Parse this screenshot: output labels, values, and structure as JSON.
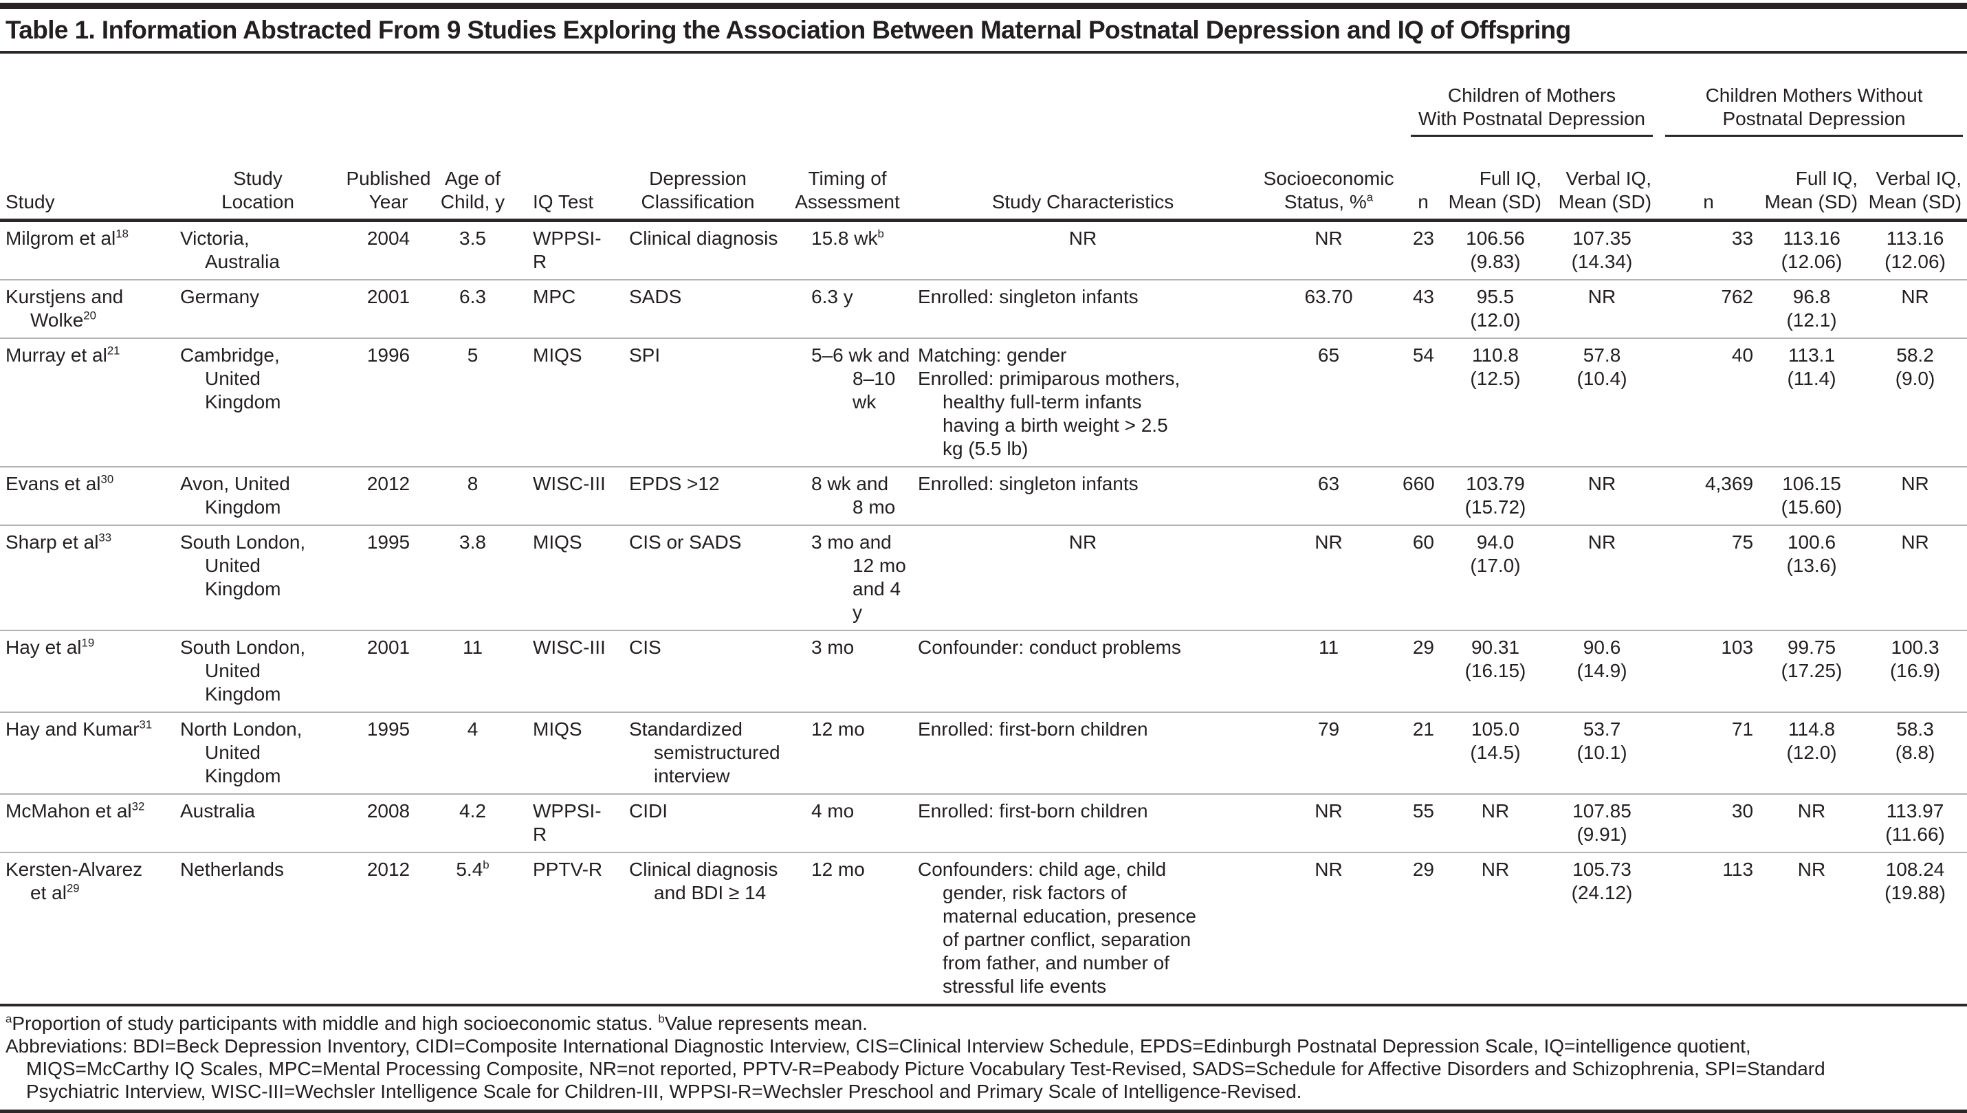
{
  "title": "Table 1. Information Abstracted From 9 Studies Exploring the Association Between Maternal Postnatal Depression and IQ of Offspring",
  "header": {
    "columns": [
      "Study",
      "Study\nLocation",
      "Published\nYear",
      "Age of\nChild, y",
      "IQ Test",
      "Depression\nClassification",
      "Timing of\nAssessment",
      "Study Characteristics",
      "Socioeconomic\nStatus, %^a"
    ],
    "groups": [
      {
        "label": "Children of Mothers\nWith Postnatal Depression",
        "subcolumns": [
          "n",
          "Full IQ,\nMean (SD)",
          "Verbal IQ,\nMean (SD)"
        ]
      },
      {
        "label": "Children Mothers Without\nPostnatal Depression",
        "subcolumns": [
          "n",
          "Full IQ,\nMean (SD)",
          "Verbal IQ,\nMean (SD)"
        ]
      }
    ]
  },
  "rows": [
    {
      "study": "Milgrom et al^18",
      "location": "Victoria,\nAustralia",
      "year": "2004",
      "age": "3.5",
      "iq_test": "WPPSI-R",
      "depression": "Clinical diagnosis",
      "timing": "15.8 wk^b",
      "characteristics": [
        "NR"
      ],
      "ses": "NR",
      "dep_n": "23",
      "dep_full": "106.56\n(9.83)",
      "dep_verbal": "107.35\n(14.34)",
      "ctrl_n": "33",
      "ctrl_full": "113.16\n(12.06)",
      "ctrl_verbal": "113.16\n(12.06)"
    },
    {
      "study": "Kurstjens and\nWolke^20",
      "location": "Germany",
      "year": "2001",
      "age": "6.3",
      "iq_test": "MPC",
      "depression": "SADS",
      "timing": "6.3 y",
      "characteristics": [
        "Enrolled: singleton infants"
      ],
      "ses": "63.70",
      "dep_n": "43",
      "dep_full": "95.5\n(12.0)",
      "dep_verbal": "NR",
      "ctrl_n": "762",
      "ctrl_full": "96.8\n(12.1)",
      "ctrl_verbal": "NR"
    },
    {
      "study": "Murray et al^21",
      "location": "Cambridge,\nUnited\nKingdom",
      "year": "1996",
      "age": "5",
      "iq_test": "MIQS",
      "depression": "SPI",
      "timing": "5–6 wk and\n8–10 wk",
      "characteristics": [
        "Matching: gender",
        "Enrolled: primiparous mothers,\nhealthy full-term infants\nhaving a birth weight > 2.5\nkg (5.5 lb)"
      ],
      "ses": "65",
      "dep_n": "54",
      "dep_full": "110.8\n(12.5)",
      "dep_verbal": "57.8\n(10.4)",
      "ctrl_n": "40",
      "ctrl_full": "113.1\n(11.4)",
      "ctrl_verbal": "58.2\n(9.0)"
    },
    {
      "study": "Evans et al^30",
      "location": "Avon, United\nKingdom",
      "year": "2012",
      "age": "8",
      "iq_test": "WISC-III",
      "depression": "EPDS >12",
      "timing": "8 wk and\n8 mo",
      "characteristics": [
        "Enrolled: singleton infants"
      ],
      "ses": "63",
      "dep_n": "660",
      "dep_full": "103.79\n(15.72)",
      "dep_verbal": "NR",
      "ctrl_n": "4,369",
      "ctrl_full": "106.15\n(15.60)",
      "ctrl_verbal": "NR"
    },
    {
      "study": "Sharp et al^33",
      "location": "South London,\nUnited\nKingdom",
      "year": "1995",
      "age": "3.8",
      "iq_test": "MIQS",
      "depression": "CIS or SADS",
      "timing": "3 mo and\n12 mo\nand 4 y",
      "characteristics": [
        "NR"
      ],
      "ses": "NR",
      "dep_n": "60",
      "dep_full": "94.0\n(17.0)",
      "dep_verbal": "NR",
      "ctrl_n": "75",
      "ctrl_full": "100.6\n(13.6)",
      "ctrl_verbal": "NR"
    },
    {
      "study": "Hay et al^19",
      "location": "South London,\nUnited\nKingdom",
      "year": "2001",
      "age": "11",
      "iq_test": "WISC-III",
      "depression": "CIS",
      "timing": "3 mo",
      "characteristics": [
        "Confounder: conduct problems"
      ],
      "ses": "11",
      "dep_n": "29",
      "dep_full": "90.31\n(16.15)",
      "dep_verbal": "90.6\n(14.9)",
      "ctrl_n": "103",
      "ctrl_full": "99.75\n(17.25)",
      "ctrl_verbal": "100.3\n(16.9)"
    },
    {
      "study": "Hay and Kumar^31",
      "location": "North London,\nUnited\nKingdom",
      "year": "1995",
      "age": "4",
      "iq_test": "MIQS",
      "depression": "Standardized\nsemistructured\ninterview",
      "timing": "12 mo",
      "characteristics": [
        "Enrolled: first-born children"
      ],
      "ses": "79",
      "dep_n": "21",
      "dep_full": "105.0\n(14.5)",
      "dep_verbal": "53.7\n(10.1)",
      "ctrl_n": "71",
      "ctrl_full": "114.8\n(12.0)",
      "ctrl_verbal": "58.3\n(8.8)"
    },
    {
      "study": "McMahon et al^32",
      "location": "Australia",
      "year": "2008",
      "age": "4.2",
      "iq_test": "WPPSI-R",
      "depression": "CIDI",
      "timing": "4 mo",
      "characteristics": [
        "Enrolled: first-born children"
      ],
      "ses": "NR",
      "dep_n": "55",
      "dep_full": "NR",
      "dep_verbal": "107.85\n(9.91)",
      "ctrl_n": "30",
      "ctrl_full": "NR",
      "ctrl_verbal": "113.97\n(11.66)"
    },
    {
      "study": "Kersten-Alvarez\net al^29",
      "location": "Netherlands",
      "year": "2012",
      "age": "5.4^b",
      "iq_test": "PPTV-R",
      "depression": "Clinical diagnosis\nand BDI ≥ 14",
      "timing": "12 mo",
      "characteristics": [
        "Confounders: child age, child\ngender, risk factors of\nmaternal education, presence\nof partner conflict, separation\nfrom father, and number of\nstressful life events"
      ],
      "ses": "NR",
      "dep_n": "29",
      "dep_full": "NR",
      "dep_verbal": "105.73\n(24.12)",
      "ctrl_n": "113",
      "ctrl_full": "NR",
      "ctrl_verbal": "108.24\n(19.88)"
    }
  ],
  "footnotes": [
    "^aProportion of study participants with middle and high socioeconomic status. ^bValue represents mean.",
    "Abbreviations: BDI=Beck Depression Inventory, CIDI=Composite International Diagnostic Interview, CIS=Clinical Interview Schedule, EPDS=Edinburgh Postnatal Depression Scale, IQ=intelligence quotient,\nMIQS=McCarthy IQ Scales, MPC=Mental Processing Composite, NR=not reported, PPTV-R=Peabody Picture Vocabulary Test-Revised, SADS=Schedule for Affective Disorders and Schizophrenia, SPI=Standard\nPsychiatric Interview, WISC-III=Wechsler Intelligence Scale for Children-III, WPPSI-R=Wechsler Preschool and Primary Scale of Intelligence-Revised."
  ]
}
